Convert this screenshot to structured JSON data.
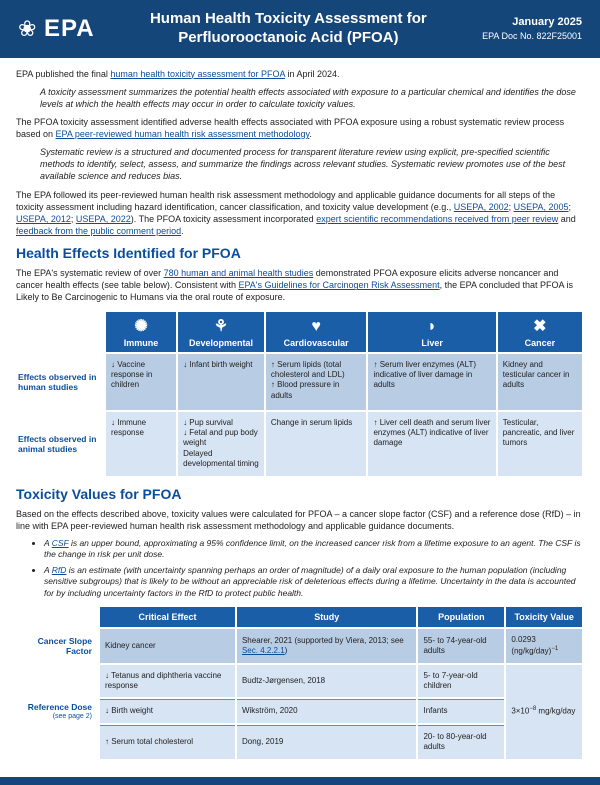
{
  "header": {
    "agency": "EPA",
    "title_line1": "Human Health Toxicity Assessment for",
    "title_line2": "Perfluorooctanoic Acid (PFOA)",
    "date": "January 2025",
    "doc_no": "EPA Doc No. 822F25001"
  },
  "intro": {
    "p1a": "EPA published the final ",
    "p1link": "human health toxicity assessment for PFOA",
    "p1b": " in April 2024.",
    "p2": "A toxicity assessment summarizes the potential health effects associated with exposure to a particular chemical and identifies the dose levels at which the health effects may occur in order to calculate toxicity values.",
    "p3a": "The PFOA toxicity assessment identified adverse health effects associated with PFOA exposure using a robust systematic review process based on ",
    "p3link": "EPA peer-reviewed human health risk assessment methodology",
    "p3b": ".",
    "p4": "Systematic review is a structured and documented process for transparent literature review using explicit, pre-specified scientific methods to identify, select, assess, and summarize the findings across relevant studies. Systematic review promotes use of the best available science and reduces bias.",
    "p5a": "The EPA followed its peer-reviewed human health risk assessment methodology and applicable guidance documents for all steps of the toxicity assessment including hazard identification, cancer classification, and toxicity value development (e.g., ",
    "p5l1": "USEPA, 2002",
    "p5s1": "; ",
    "p5l2": "USEPA, 2005",
    "p5s2": "; ",
    "p5l3": "USEPA, 2012",
    "p5s3": "; ",
    "p5l4": "USEPA, 2022",
    "p5b": "). The PFOA toxicity assessment incorporated ",
    "p5l5": "expert scientific recommendations received from peer review",
    "p5c": " and ",
    "p5l6": "feedback from the public comment period",
    "p5d": "."
  },
  "hx": {
    "heading": "Health Effects Identified for PFOA",
    "p1a": "The EPA's systematic review of over ",
    "p1link": "780 human and animal health studies",
    "p1b": " demonstrated PFOA exposure elicits adverse noncancer and cancer health effects (see table below). Consistent with ",
    "p1link2": "EPA's Guidelines for Carcinogen Risk Assessment",
    "p1c": ", the EPA concluded that PFOA is Likely to Be Carcinogenic to Humans via the oral route of exposure.",
    "row_human": "Effects observed in human studies",
    "row_animal": "Effects observed in animal studies",
    "cols": [
      {
        "label": "Immune",
        "icon": "✺"
      },
      {
        "label": "Developmental",
        "icon": "⚘"
      },
      {
        "label": "Cardiovascular",
        "icon": "♥"
      },
      {
        "label": "Liver",
        "icon": "◗"
      },
      {
        "label": "Cancer",
        "icon": "✖"
      }
    ],
    "human": {
      "immune": "↓ Vaccine response in children",
      "developmental": "↓ Infant birth weight",
      "cardio_a": "↑ Serum lipids (total cholesterol and LDL)",
      "cardio_b": "↑ Blood pressure in adults",
      "liver": "↑ Serum liver enzymes (ALT) indicative of liver damage in adults",
      "cancer": "Kidney and testicular cancer in adults"
    },
    "animal": {
      "immune": "↓ Immune response",
      "dev_a": "↓ Pup survival",
      "dev_b": "↓ Fetal and pup body weight",
      "dev_c": "Delayed developmental timing",
      "cardio": "Change in serum lipids",
      "liver": "↑ Liver cell death and serum liver enzymes (ALT) indicative of liver damage",
      "cancer": "Testicular, pancreatic, and liver tumors"
    }
  },
  "tox": {
    "heading": "Toxicity Values for PFOA",
    "p1": "Based on the effects described above, toxicity values were calculated for PFOA – a cancer slope factor (CSF) and a reference dose (RfD) – in line with EPA peer-reviewed human health risk assessment methodology and applicable guidance documents.",
    "bul1a": "A ",
    "bul1link": "CSF",
    "bul1b": " is an upper bound, approximating a 95% confidence limit, on the increased cancer risk from a lifetime exposure to an agent. The CSF is the change in risk per unit dose.",
    "bul2a": "A ",
    "bul2link": "RfD",
    "bul2b": " is an estimate (with uncertainty spanning perhaps an order of magnitude) of a daily oral exposure to the human population (including sensitive subgroups) that is likely to be without an appreciable risk of deleterious effects during a lifetime. Uncertainty in the data is accounted for by including uncertainty factors in the RfD to protect public health.",
    "colheads": [
      "Critical Effect",
      "Study",
      "Population",
      "Toxicity Value"
    ],
    "csf_label": "Cancer Slope Factor",
    "csf": {
      "effect": "Kidney cancer",
      "study_a": "Shearer, 2021 (supported by Viera, 2013; see ",
      "study_link": "Sec. 4.2.2.1",
      "study_b": ")",
      "pop": "55- to 74-year-old adults",
      "value_pre": "0.0293 (ng/kg/day)",
      "value_sup": "−1"
    },
    "rfd_label": "Reference Dose",
    "rfd_sub": "(see page 2)",
    "rfd_rows": [
      {
        "effect": "↓ Tetanus and diphtheria vaccine response",
        "study": "Budtz-Jørgensen, 2018",
        "pop": "5- to 7-year-old children"
      },
      {
        "effect": "↓ Birth weight",
        "study": "Wikström, 2020",
        "pop": "Infants"
      },
      {
        "effect": "↑ Serum total cholesterol",
        "study": "Dong, 2019",
        "pop": "20- to 80-year-old adults"
      }
    ],
    "rfd_value_pre": "3×10",
    "rfd_value_sup": "−8",
    "rfd_value_post": " mg/kg/day"
  }
}
